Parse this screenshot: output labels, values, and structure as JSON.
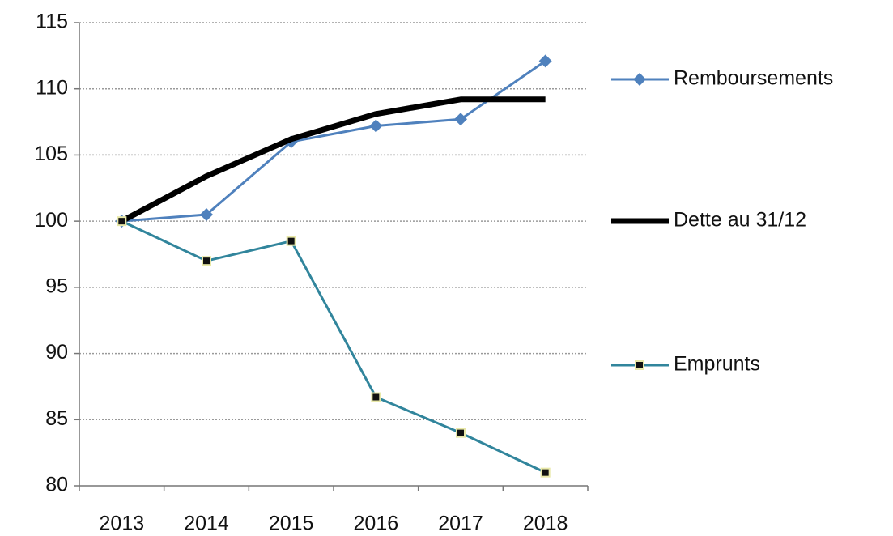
{
  "chart_data": {
    "type": "line",
    "categories": [
      "2013",
      "2014",
      "2015",
      "2016",
      "2017",
      "2018"
    ],
    "series": [
      {
        "name": "Remboursements",
        "color": "#4f81bd",
        "marker": "diamond",
        "values": [
          100,
          100.5,
          106,
          107.2,
          107.7,
          112.1
        ]
      },
      {
        "name": "Dette au 31/12",
        "color": "#000000",
        "marker": "none",
        "values": [
          100,
          103.4,
          106.2,
          108.1,
          109.2,
          109.2
        ]
      },
      {
        "name": "Emprunts",
        "color": "#31859c",
        "marker": "square",
        "values": [
          100,
          97,
          98.5,
          86.7,
          84,
          81
        ]
      }
    ],
    "ylim": [
      80,
      115
    ],
    "yticks": [
      80,
      85,
      90,
      95,
      100,
      105,
      110,
      115
    ],
    "grid": true,
    "legend": "right"
  }
}
